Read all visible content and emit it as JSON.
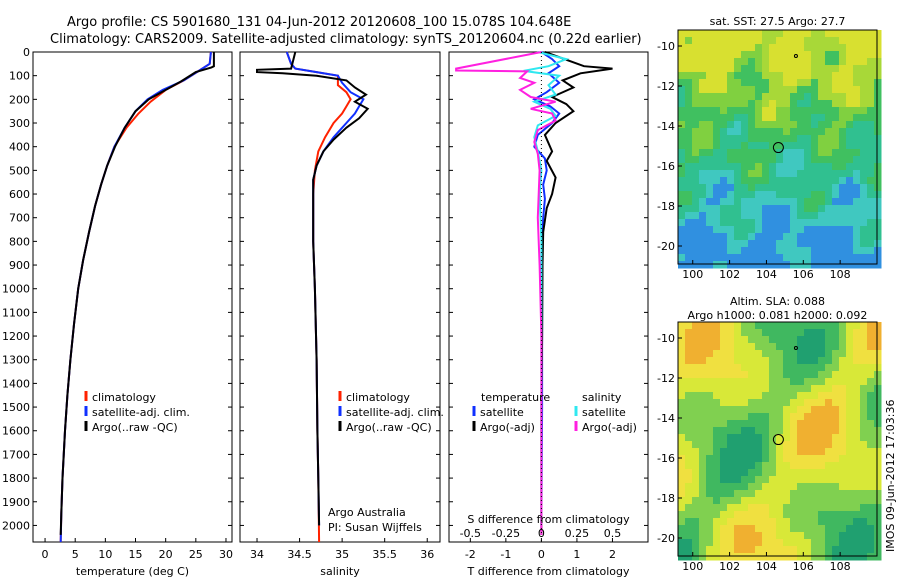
{
  "header": {
    "line1": "Argo profile: CS 5901680_131 04-Jun-2012 20120608_100 15.078S 104.648E",
    "line2": "Climatology: CARS2009. Satellite-adjusted climatology: synTS_20120604.nc (0.22d earlier)"
  },
  "depth_ticks": [
    "0",
    "100",
    "200",
    "300",
    "400",
    "500",
    "600",
    "700",
    "800",
    "900",
    "1000",
    "1100",
    "1200",
    "1300",
    "1400",
    "1500",
    "1600",
    "1700",
    "1800",
    "1900",
    "2000"
  ],
  "colors": {
    "climatology": "#ff2200",
    "satellite": "#1030ff",
    "argo": "#000000",
    "cyan": "#30e8f0",
    "magenta": "#ff20e0"
  },
  "legends": {
    "temp": [
      "climatology",
      "satellite-adj. clim.",
      "Argo(..raw -QC)"
    ],
    "sal": [
      "climatology",
      "satellite-adj. clim.",
      "Argo(..raw -QC)"
    ],
    "diff_temp_title": "temperature",
    "diff_sal_title": "salinity",
    "diff_temp": [
      "satellite",
      "Argo(-adj)"
    ],
    "diff_sal": [
      "satellite",
      "Argo(-adj)"
    ]
  },
  "sal_notes": {
    "a": "Argo Australia",
    "b": "PI: Susan Wijffels"
  },
  "diff_upper_label": "S difference from climatology",
  "maps": {
    "sst_title": "sat. SST: 27.5  Argo: 27.7",
    "sla_title1": "Altim. SLA: 0.088",
    "sla_title2": "Argo h1000: 0.081  h2000: 0.092",
    "x_ticks": [
      "100",
      "102",
      "104",
      "106",
      "108"
    ],
    "y_ticks": [
      "-10",
      "-12",
      "-14",
      "-16",
      "-18",
      "-20"
    ]
  },
  "stamp": "IMOS 09-Jun-2012 17:03:36",
  "chart_data": [
    {
      "type": "line",
      "xlabel": "temperature (deg C)",
      "ylabel": "",
      "x_ticks": [
        "0",
        "5",
        "10",
        "15",
        "20",
        "25",
        "30"
      ],
      "xlim": [
        -2,
        31
      ],
      "ylim": [
        2070,
        0
      ],
      "series": [
        {
          "name": "climatology",
          "points": [
            [
              27.5,
              0
            ],
            [
              27.3,
              50
            ],
            [
              25.5,
              80
            ],
            [
              23,
              120
            ],
            [
              20,
              160
            ],
            [
              17.5,
              210
            ],
            [
              15.5,
              260
            ],
            [
              13.5,
              320
            ],
            [
              11.5,
              400
            ],
            [
              10.3,
              480
            ],
            [
              9.3,
              560
            ],
            [
              8.3,
              650
            ],
            [
              7.3,
              760
            ],
            [
              6.3,
              880
            ],
            [
              5.5,
              1000
            ],
            [
              4.8,
              1150
            ],
            [
              4.2,
              1300
            ],
            [
              3.7,
              1450
            ],
            [
              3.3,
              1600
            ],
            [
              2.9,
              1800
            ],
            [
              2.7,
              1950
            ],
            [
              2.6,
              2070
            ]
          ]
        },
        {
          "name": "satellite-adj. clim.",
          "points": [
            [
              27.5,
              0
            ],
            [
              27.3,
              50
            ],
            [
              25.5,
              80
            ],
            [
              23,
              120
            ],
            [
              19.5,
              160
            ],
            [
              17,
              200
            ],
            [
              15,
              250
            ],
            [
              13.2,
              320
            ],
            [
              11.5,
              400
            ],
            [
              10.3,
              480
            ],
            [
              9.3,
              560
            ],
            [
              8.3,
              650
            ],
            [
              7.3,
              760
            ],
            [
              6.3,
              880
            ],
            [
              5.5,
              1000
            ],
            [
              4.8,
              1150
            ],
            [
              4.2,
              1300
            ],
            [
              3.7,
              1450
            ],
            [
              3.3,
              1600
            ],
            [
              2.9,
              1800
            ],
            [
              2.7,
              1950
            ],
            [
              2.6,
              2070
            ]
          ]
        },
        {
          "name": "Argo(..raw -QC)",
          "points": [
            [
              28,
              0
            ],
            [
              28,
              60
            ],
            [
              27.6,
              65
            ],
            [
              25,
              85
            ],
            [
              22.5,
              125
            ],
            [
              20,
              160
            ],
            [
              17.2,
              200
            ],
            [
              15,
              250
            ],
            [
              13.2,
              320
            ],
            [
              11.6,
              400
            ],
            [
              10.3,
              480
            ],
            [
              9.3,
              560
            ],
            [
              8.3,
              650
            ],
            [
              7.3,
              760
            ],
            [
              6.3,
              880
            ],
            [
              5.5,
              1000
            ],
            [
              4.8,
              1150
            ],
            [
              4.2,
              1300
            ],
            [
              3.7,
              1450
            ],
            [
              3.3,
              1600
            ],
            [
              2.9,
              1800
            ],
            [
              2.7,
              1950
            ],
            [
              2.6,
              2040
            ]
          ]
        }
      ]
    },
    {
      "type": "line",
      "xlabel": "salinity",
      "x_ticks": [
        "34",
        "34.5",
        "35",
        "35.5",
        "36"
      ],
      "xlim": [
        33.8,
        36.15
      ],
      "ylim": [
        2070,
        0
      ],
      "series": [
        {
          "name": "climatology",
          "points": [
            [
              34.35,
              0
            ],
            [
              34.4,
              50
            ],
            [
              34.45,
              70
            ],
            [
              34.7,
              85
            ],
            [
              34.95,
              100
            ],
            [
              34.95,
              140
            ],
            [
              35.05,
              170
            ],
            [
              35.1,
              200
            ],
            [
              35.05,
              230
            ],
            [
              35.0,
              260
            ],
            [
              34.9,
              300
            ],
            [
              34.8,
              360
            ],
            [
              34.72,
              420
            ],
            [
              34.68,
              500
            ],
            [
              34.66,
              600
            ],
            [
              34.66,
              800
            ],
            [
              34.68,
              1000
            ],
            [
              34.7,
              1300
            ],
            [
              34.71,
              1600
            ],
            [
              34.72,
              1800
            ],
            [
              34.73,
              2070
            ]
          ]
        },
        {
          "name": "satellite-adj. clim.",
          "points": [
            [
              34.35,
              0
            ],
            [
              34.4,
              50
            ],
            [
              34.45,
              70
            ],
            [
              34.7,
              85
            ],
            [
              34.95,
              100
            ],
            [
              35.0,
              130
            ],
            [
              35.1,
              170
            ],
            [
              35.25,
              200
            ],
            [
              35.2,
              230
            ],
            [
              35.15,
              260
            ],
            [
              35.05,
              300
            ],
            [
              34.9,
              360
            ],
            [
              34.78,
              420
            ],
            [
              34.7,
              480
            ],
            [
              34.66,
              540
            ],
            [
              34.66,
              800
            ],
            [
              34.68,
              1000
            ],
            [
              34.7,
              1300
            ],
            [
              34.71,
              1600
            ],
            [
              34.72,
              1800
            ],
            [
              34.73,
              2000
            ]
          ]
        },
        {
          "name": "Argo(..raw -QC)",
          "points": [
            [
              34.45,
              0
            ],
            [
              34.4,
              70
            ],
            [
              34.0,
              75
            ],
            [
              34.0,
              85
            ],
            [
              34.3,
              90
            ],
            [
              34.7,
              100
            ],
            [
              35.05,
              120
            ],
            [
              35.15,
              150
            ],
            [
              35.28,
              180
            ],
            [
              35.15,
              210
            ],
            [
              35.3,
              240
            ],
            [
              35.2,
              280
            ],
            [
              35.05,
              320
            ],
            [
              34.9,
              370
            ],
            [
              34.78,
              420
            ],
            [
              34.7,
              480
            ],
            [
              34.66,
              540
            ],
            [
              34.66,
              800
            ],
            [
              34.68,
              1000
            ],
            [
              34.7,
              1300
            ],
            [
              34.71,
              1600
            ],
            [
              34.72,
              1800
            ],
            [
              34.73,
              2000
            ]
          ]
        }
      ]
    },
    {
      "type": "line",
      "xlabel": "T difference from climatology",
      "x_ticks_lower": [
        "-2",
        "-1",
        "0",
        "1",
        "2"
      ],
      "x_ticks_upper": [
        "-0.5",
        "-0.25",
        "0",
        "0.25",
        "0.5"
      ],
      "xlim": [
        -2.6,
        3.0
      ],
      "ylim": [
        2070,
        0
      ],
      "series": [
        {
          "name": "temperature satellite",
          "points": [
            [
              0,
              0
            ],
            [
              0.3,
              30
            ],
            [
              0.5,
              60
            ],
            [
              0.2,
              90
            ],
            [
              0.5,
              130
            ],
            [
              0.15,
              170
            ],
            [
              -0.2,
              200
            ],
            [
              0.25,
              230
            ],
            [
              0.5,
              260
            ],
            [
              0.3,
              300
            ],
            [
              -0.1,
              350
            ],
            [
              -0.2,
              400
            ],
            [
              0.1,
              450
            ],
            [
              0.15,
              500
            ],
            [
              0.05,
              560
            ],
            [
              0.1,
              620
            ],
            [
              0.05,
              700
            ],
            [
              0.03,
              800
            ],
            [
              0.02,
              1000
            ],
            [
              0.02,
              1500
            ],
            [
              0.0,
              2000
            ]
          ]
        },
        {
          "name": "temperature Argo(-adj)",
          "points": [
            [
              0.1,
              0
            ],
            [
              1.2,
              60
            ],
            [
              2.0,
              70
            ],
            [
              1.1,
              90
            ],
            [
              0.6,
              120
            ],
            [
              0.9,
              150
            ],
            [
              0.3,
              190
            ],
            [
              0.7,
              220
            ],
            [
              0.9,
              250
            ],
            [
              0.4,
              300
            ],
            [
              0.1,
              350
            ],
            [
              0.3,
              420
            ],
            [
              0.15,
              460
            ],
            [
              0.4,
              530
            ],
            [
              0.3,
              600
            ],
            [
              0.15,
              660
            ],
            [
              0.05,
              760
            ],
            [
              0.03,
              900
            ],
            [
              0.02,
              1200
            ],
            [
              0.0,
              1500
            ],
            [
              0.0,
              1900
            ],
            [
              0.0,
              2040
            ]
          ]
        },
        {
          "name": "salinity satellite",
          "points": [
            [
              -0.1,
              0
            ],
            [
              0.7,
              30
            ],
            [
              0.2,
              60
            ],
            [
              -0.5,
              80
            ],
            [
              0.5,
              100
            ],
            [
              0.2,
              140
            ],
            [
              0.4,
              180
            ],
            [
              -0.2,
              210
            ],
            [
              0.25,
              240
            ],
            [
              0.4,
              270
            ],
            [
              -0.1,
              310
            ],
            [
              -0.2,
              360
            ],
            [
              -0.1,
              420
            ],
            [
              0.0,
              500
            ],
            [
              -0.05,
              600
            ],
            [
              0.0,
              800
            ],
            [
              0.0,
              1500
            ],
            [
              0.0,
              2000
            ]
          ]
        },
        {
          "name": "salinity Argo(-adj)",
          "points": [
            [
              0,
              0
            ],
            [
              -2.4,
              70
            ],
            [
              -2.4,
              78
            ],
            [
              -0.4,
              82
            ],
            [
              -0.6,
              110
            ],
            [
              -0.2,
              130
            ],
            [
              -0.6,
              160
            ],
            [
              -0.3,
              190
            ],
            [
              0.4,
              210
            ],
            [
              -0.3,
              240
            ],
            [
              0.3,
              260
            ],
            [
              0.4,
              290
            ],
            [
              -0.1,
              330
            ],
            [
              -0.2,
              380
            ],
            [
              -0.1,
              430
            ],
            [
              -0.05,
              500
            ],
            [
              -0.1,
              700
            ],
            [
              -0.05,
              900
            ],
            [
              0.0,
              1200
            ],
            [
              0.0,
              1800
            ],
            [
              0.0,
              2040
            ]
          ]
        }
      ]
    }
  ]
}
